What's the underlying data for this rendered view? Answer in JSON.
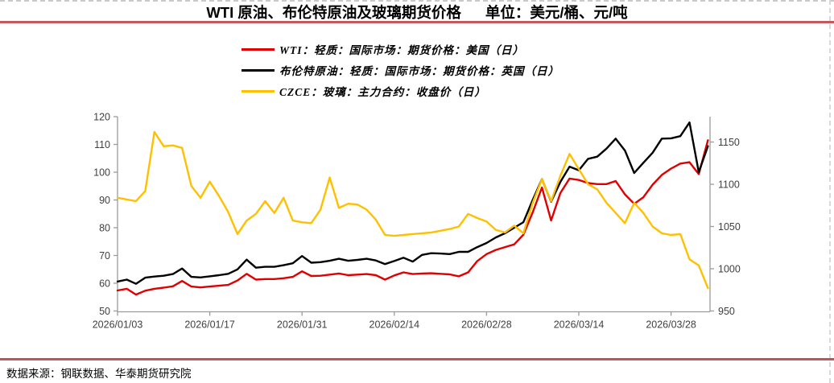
{
  "header": {
    "title": "WTI 原油、布伦特原油及玻璃期货价格",
    "unit_label": "单位：美元/桶、元/吨"
  },
  "legend": {
    "items": [
      {
        "label": "WTI：轻质：国际市场：期货价格：美国（日）",
        "color": "#e00000"
      },
      {
        "label": "布伦特原油：轻质：国际市场：期货价格：英国（日）",
        "color": "#000000"
      },
      {
        "label": "CZCE：玻璃：主力合约：收盘价（日）",
        "color": "#ffc000"
      }
    ]
  },
  "footer": {
    "source": "数据来源：钢联数据、华泰期货研究院"
  },
  "chart_data": {
    "type": "line",
    "title": "WTI 原油、布伦特原油及玻璃期货价格",
    "unit": "美元/桶、元/吨",
    "n_points": 65,
    "x_tick_labels": [
      "2026/01/03",
      "2026/01/17",
      "2026/01/31",
      "2026/02/14",
      "2026/02/28",
      "2026/03/14",
      "2026/03/28"
    ],
    "x_tick_indices": [
      0,
      10,
      20,
      30,
      40,
      50,
      60
    ],
    "left_axis": {
      "min": 50,
      "max": 120,
      "ticks": [
        50,
        60,
        70,
        80,
        90,
        100,
        110,
        120
      ]
    },
    "right_axis": {
      "min": 950,
      "max": 1180,
      "ticks": [
        950,
        1000,
        1050,
        1100,
        1150
      ]
    },
    "grid": false,
    "legend_position": "top",
    "axis_color": "#9b9b9b",
    "tick_label_color": "#3f3f3f",
    "series": [
      {
        "name": "WTI：轻质：国际市场：期货价格：美国（日）",
        "axis": "left",
        "color": "#e00000",
        "values": [
          57.4,
          58,
          55.9,
          57.3,
          58,
          58.4,
          58.9,
          60.8,
          58.8,
          58.5,
          58.8,
          59.1,
          59.4,
          61,
          63.4,
          61.3,
          61.5,
          61.5,
          61.8,
          62.3,
          64.3,
          62.6,
          62.7,
          63.1,
          63.5,
          62.9,
          63.1,
          63.3,
          62.9,
          61.3,
          62.8,
          63.9,
          63.3,
          63.5,
          63.6,
          63.4,
          63.2,
          62.5,
          63.9,
          68,
          70.5,
          72,
          73,
          74,
          77.5,
          85.5,
          94.5,
          82.6,
          92.5,
          97.7,
          97.2,
          96.1,
          95.7,
          95.7,
          96.8,
          92,
          88.6,
          91,
          95.5,
          99,
          101.3,
          103.1,
          103.6,
          99.3,
          111.5
        ]
      },
      {
        "name": "布伦特原油：轻质：国际市场：期货价格：英国（日）",
        "axis": "left",
        "color": "#000000",
        "values": [
          60.6,
          61.3,
          59.8,
          62,
          62.4,
          62.7,
          63.3,
          65.3,
          62.3,
          62.1,
          62.5,
          62.9,
          63.4,
          65,
          68.5,
          65.6,
          65.9,
          65.9,
          66.5,
          67.2,
          69.8,
          67.4,
          67.6,
          68.1,
          68.8,
          68.1,
          68.4,
          68.8,
          68.2,
          66.9,
          68,
          69.2,
          67.8,
          70.2,
          70.8,
          70.7,
          70.5,
          71.3,
          71.3,
          73,
          74.5,
          76.5,
          78,
          80,
          82,
          90,
          97.5,
          89.4,
          96.5,
          102,
          100.7,
          104.8,
          105.6,
          108.5,
          112.1,
          107.8,
          99.7,
          103.4,
          107,
          112.1,
          112.2,
          113,
          117.9,
          100,
          109.4
        ]
      },
      {
        "name": "CZCE：玻璃：主力合约：收盘价（日）",
        "axis": "right",
        "color": "#ffc000",
        "values": [
          1084,
          1082,
          1080,
          1092,
          1162,
          1145,
          1146,
          1143,
          1098,
          1084,
          1103,
          1086,
          1067,
          1041,
          1057,
          1065,
          1080,
          1066,
          1084,
          1057,
          1055,
          1054,
          1070,
          1108,
          1072,
          1077,
          1076,
          1070,
          1058,
          1040,
          1039,
          1040,
          1041,
          1042,
          1043,
          1045,
          1047,
          1050,
          1065,
          1060,
          1056,
          1046,
          1043,
          1051,
          1042,
          1078,
          1106,
          1080,
          1110,
          1136,
          1118,
          1100,
          1094,
          1078,
          1066,
          1054,
          1078,
          1066,
          1050,
          1042,
          1040,
          1041,
          1011,
          1004,
          977
        ]
      }
    ]
  }
}
